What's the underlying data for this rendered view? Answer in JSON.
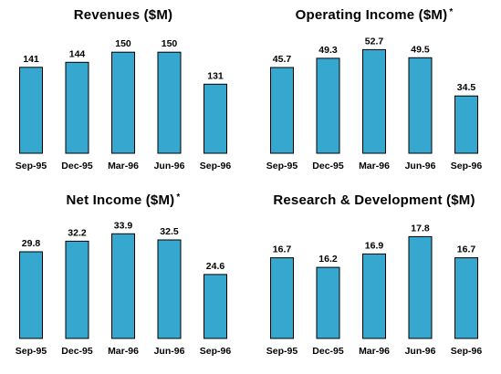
{
  "chart_data": [
    {
      "type": "bar",
      "title": "Revenues ($M)",
      "title_suffix": "",
      "categories": [
        "Sep-95",
        "Dec-95",
        "Mar-96",
        "Jun-96",
        "Sep-96"
      ],
      "values": [
        141,
        144,
        150,
        150,
        131
      ],
      "value_labels": [
        "141",
        "144",
        "150",
        "150",
        "131"
      ],
      "ylim": [
        90,
        155
      ],
      "grid": false,
      "color": "#36a8cf"
    },
    {
      "type": "bar",
      "title": "Operating Income ($M)",
      "title_suffix": "*",
      "categories": [
        "Sep-95",
        "Dec-95",
        "Mar-96",
        "Jun-96",
        "Sep-96"
      ],
      "values": [
        45.7,
        49.3,
        52.7,
        49.5,
        34.5
      ],
      "value_labels": [
        "45.7",
        "49.3",
        "52.7",
        "49.5",
        "34.5"
      ],
      "ylim": [
        12,
        55
      ],
      "grid": false,
      "color": "#36a8cf"
    },
    {
      "type": "bar",
      "title": "Net Income ($M)",
      "title_suffix": "*",
      "categories": [
        "Sep-95",
        "Dec-95",
        "Mar-96",
        "Jun-96",
        "Sep-96"
      ],
      "values": [
        29.8,
        32.2,
        33.9,
        32.5,
        24.6
      ],
      "value_labels": [
        "29.8",
        "32.2",
        "33.9",
        "32.5",
        "24.6"
      ],
      "ylim": [
        10,
        35
      ],
      "grid": false,
      "color": "#36a8cf"
    },
    {
      "type": "bar",
      "title": "Research & Development ($M)",
      "title_suffix": "",
      "categories": [
        "Sep-95",
        "Dec-95",
        "Mar-96",
        "Jun-96",
        "Sep-96"
      ],
      "values": [
        16.7,
        16.2,
        16.9,
        17.8,
        16.7
      ],
      "value_labels": [
        "16.7",
        "16.2",
        "16.9",
        "17.8",
        "16.7"
      ],
      "ylim": [
        12.5,
        18.2
      ],
      "grid": false,
      "color": "#36a8cf"
    }
  ]
}
